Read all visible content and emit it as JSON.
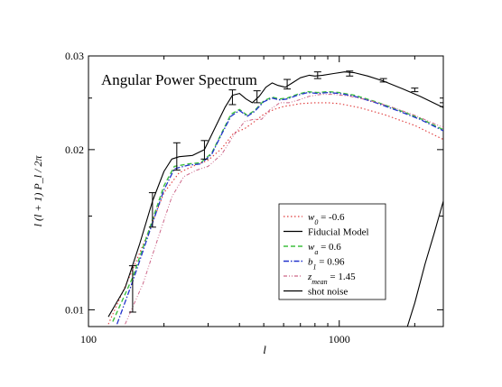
{
  "chart_data": {
    "type": "line",
    "title": "Angular Power Spectrum",
    "xlabel": "l",
    "ylabel": "l (l + 1) P_l / 2π",
    "xscale": "log",
    "yscale": "log",
    "xlim": [
      100,
      2600
    ],
    "ylim": [
      0.0093,
      0.03
    ],
    "xticks": [
      {
        "v": 100,
        "label": "100"
      },
      {
        "v": 1000,
        "label": "1000"
      }
    ],
    "yticks": [
      {
        "v": 0.01,
        "label": "0.01"
      },
      {
        "v": 0.02,
        "label": "0.02"
      },
      {
        "v": 0.03,
        "label": "0.03"
      }
    ],
    "grid": false,
    "legend_position": "bottom-right",
    "series": [
      {
        "name": "w_0 = -0.6",
        "label_main": "w",
        "label_sub": "0",
        "label_rest": " = -0.6",
        "color": "#e03a3a",
        "dash": "1.5,2.5",
        "width": 1.1,
        "points": [
          [
            120,
            0.0094
          ],
          [
            150,
            0.0119
          ],
          [
            180,
            0.0146
          ],
          [
            200,
            0.0166
          ],
          [
            230,
            0.0181
          ],
          [
            260,
            0.0186
          ],
          [
            300,
            0.0191
          ],
          [
            340,
            0.0201
          ],
          [
            380,
            0.0215
          ],
          [
            420,
            0.0219
          ],
          [
            460,
            0.0226
          ],
          [
            500,
            0.0233
          ],
          [
            550,
            0.0238
          ],
          [
            600,
            0.0241
          ],
          [
            700,
            0.0244
          ],
          [
            800,
            0.0245
          ],
          [
            900,
            0.0245
          ],
          [
            1000,
            0.0244
          ],
          [
            1200,
            0.024
          ],
          [
            1500,
            0.0233
          ],
          [
            2000,
            0.0222
          ],
          [
            2600,
            0.0209
          ]
        ]
      },
      {
        "name": "Fiducial Model",
        "label_main": "Fiducial Model",
        "label_sub": "",
        "label_rest": "",
        "color": "#000000",
        "dash": "",
        "width": 1.1,
        "points": [
          [
            120,
            0.0097
          ],
          [
            140,
            0.011
          ],
          [
            160,
            0.0133
          ],
          [
            180,
            0.016
          ],
          [
            200,
            0.0182
          ],
          [
            215,
            0.0192
          ],
          [
            230,
            0.0194
          ],
          [
            260,
            0.0195
          ],
          [
            290,
            0.02
          ],
          [
            320,
            0.022
          ],
          [
            350,
            0.024
          ],
          [
            375,
            0.0253
          ],
          [
            400,
            0.0255
          ],
          [
            425,
            0.0249
          ],
          [
            450,
            0.0245
          ],
          [
            480,
            0.0252
          ],
          [
            510,
            0.0262
          ],
          [
            540,
            0.0267
          ],
          [
            570,
            0.0264
          ],
          [
            610,
            0.0262
          ],
          [
            650,
            0.0267
          ],
          [
            700,
            0.0273
          ],
          [
            760,
            0.0276
          ],
          [
            800,
            0.0275
          ],
          [
            860,
            0.0276
          ],
          [
            950,
            0.0278
          ],
          [
            1050,
            0.028
          ],
          [
            1150,
            0.0279
          ],
          [
            1300,
            0.0275
          ],
          [
            1500,
            0.0269
          ],
          [
            1800,
            0.026
          ],
          [
            2100,
            0.0252
          ],
          [
            2600,
            0.024
          ]
        ]
      },
      {
        "name": "w_a = 0.6",
        "label_main": "w",
        "label_sub": "a",
        "label_rest": " = 0.6",
        "color": "#3fbf3f",
        "dash": "5,3",
        "width": 1.4,
        "points": [
          [
            125,
            0.0095
          ],
          [
            150,
            0.0115
          ],
          [
            175,
            0.0142
          ],
          [
            200,
            0.0171
          ],
          [
            220,
            0.0186
          ],
          [
            250,
            0.0188
          ],
          [
            280,
            0.0189
          ],
          [
            310,
            0.0197
          ],
          [
            340,
            0.0215
          ],
          [
            370,
            0.0233
          ],
          [
            400,
            0.0238
          ],
          [
            430,
            0.0232
          ],
          [
            460,
            0.0237
          ],
          [
            500,
            0.0247
          ],
          [
            540,
            0.0251
          ],
          [
            580,
            0.0249
          ],
          [
            620,
            0.025
          ],
          [
            680,
            0.0254
          ],
          [
            750,
            0.0257
          ],
          [
            820,
            0.0256
          ],
          [
            900,
            0.0257
          ],
          [
            1000,
            0.0256
          ],
          [
            1150,
            0.0253
          ],
          [
            1400,
            0.0246
          ],
          [
            1700,
            0.0238
          ],
          [
            2100,
            0.0229
          ],
          [
            2600,
            0.0218
          ]
        ]
      },
      {
        "name": "b_1 = 0.96",
        "label_main": "b",
        "label_sub": "1",
        "label_rest": " = 0.96",
        "color": "#2233cc",
        "dash": "6,2,1.5,2",
        "width": 1.3,
        "points": [
          [
            130,
            0.0094
          ],
          [
            150,
            0.0113
          ],
          [
            175,
            0.014
          ],
          [
            200,
            0.0168
          ],
          [
            220,
            0.0184
          ],
          [
            250,
            0.0187
          ],
          [
            280,
            0.0188
          ],
          [
            310,
            0.0196
          ],
          [
            340,
            0.0214
          ],
          [
            370,
            0.0231
          ],
          [
            400,
            0.0237
          ],
          [
            430,
            0.0231
          ],
          [
            460,
            0.0236
          ],
          [
            500,
            0.0246
          ],
          [
            540,
            0.025
          ],
          [
            580,
            0.0248
          ],
          [
            620,
            0.0249
          ],
          [
            680,
            0.0253
          ],
          [
            750,
            0.0256
          ],
          [
            820,
            0.0255
          ],
          [
            900,
            0.0256
          ],
          [
            1000,
            0.0255
          ],
          [
            1150,
            0.0252
          ],
          [
            1400,
            0.0245
          ],
          [
            1700,
            0.0237
          ],
          [
            2100,
            0.0228
          ],
          [
            2600,
            0.0217
          ]
        ]
      },
      {
        "name": "z_mean = 1.45",
        "label_main": "z",
        "label_sub": "mean",
        "label_rest": " = 1.45",
        "color": "#cc6688",
        "dash": "4,2,1,2,1,2",
        "width": 1.0,
        "points": [
          [
            140,
            0.0094
          ],
          [
            165,
            0.0112
          ],
          [
            190,
            0.0137
          ],
          [
            215,
            0.0163
          ],
          [
            240,
            0.0178
          ],
          [
            270,
            0.0183
          ],
          [
            300,
            0.0186
          ],
          [
            340,
            0.0196
          ],
          [
            380,
            0.0213
          ],
          [
            420,
            0.0226
          ],
          [
            455,
            0.0228
          ],
          [
            490,
            0.0228
          ],
          [
            530,
            0.0238
          ],
          [
            580,
            0.0245
          ],
          [
            630,
            0.0245
          ],
          [
            690,
            0.0248
          ],
          [
            760,
            0.0252
          ],
          [
            850,
            0.0254
          ],
          [
            950,
            0.0254
          ],
          [
            1100,
            0.0252
          ],
          [
            1300,
            0.0248
          ],
          [
            1600,
            0.0241
          ],
          [
            2000,
            0.0232
          ],
          [
            2600,
            0.022
          ]
        ]
      },
      {
        "name": "shot noise",
        "label_main": "shot noise",
        "label_sub": "",
        "label_rest": "",
        "color": "#000000",
        "dash": "",
        "width": 1.1,
        "points": [
          [
            1870,
            0.0093
          ],
          [
            2000,
            0.0103
          ],
          [
            2200,
            0.0122
          ],
          [
            2400,
            0.014
          ],
          [
            2600,
            0.016
          ]
        ]
      }
    ],
    "error_bars": [
      {
        "x": 150,
        "y": 0.011,
        "low": 0.0099,
        "high": 0.0121
      },
      {
        "x": 180,
        "y": 0.0154,
        "low": 0.0143,
        "high": 0.0166
      },
      {
        "x": 225,
        "y": 0.0194,
        "low": 0.0183,
        "high": 0.0206
      },
      {
        "x": 290,
        "y": 0.02,
        "low": 0.0192,
        "high": 0.0208
      },
      {
        "x": 375,
        "y": 0.025,
        "low": 0.0243,
        "high": 0.0259
      },
      {
        "x": 470,
        "y": 0.0252,
        "low": 0.0245,
        "high": 0.0258
      },
      {
        "x": 620,
        "y": 0.0265,
        "low": 0.026,
        "high": 0.0271
      },
      {
        "x": 820,
        "y": 0.0276,
        "low": 0.0272,
        "high": 0.028
      },
      {
        "x": 1100,
        "y": 0.0278,
        "low": 0.0275,
        "high": 0.0281
      },
      {
        "x": 1500,
        "y": 0.027,
        "low": 0.0268,
        "high": 0.0272
      },
      {
        "x": 2000,
        "y": 0.0259,
        "low": 0.0257,
        "high": 0.0261
      },
      {
        "x": 2600,
        "y": 0.0243,
        "low": 0.0241,
        "high": 0.0245
      }
    ]
  }
}
